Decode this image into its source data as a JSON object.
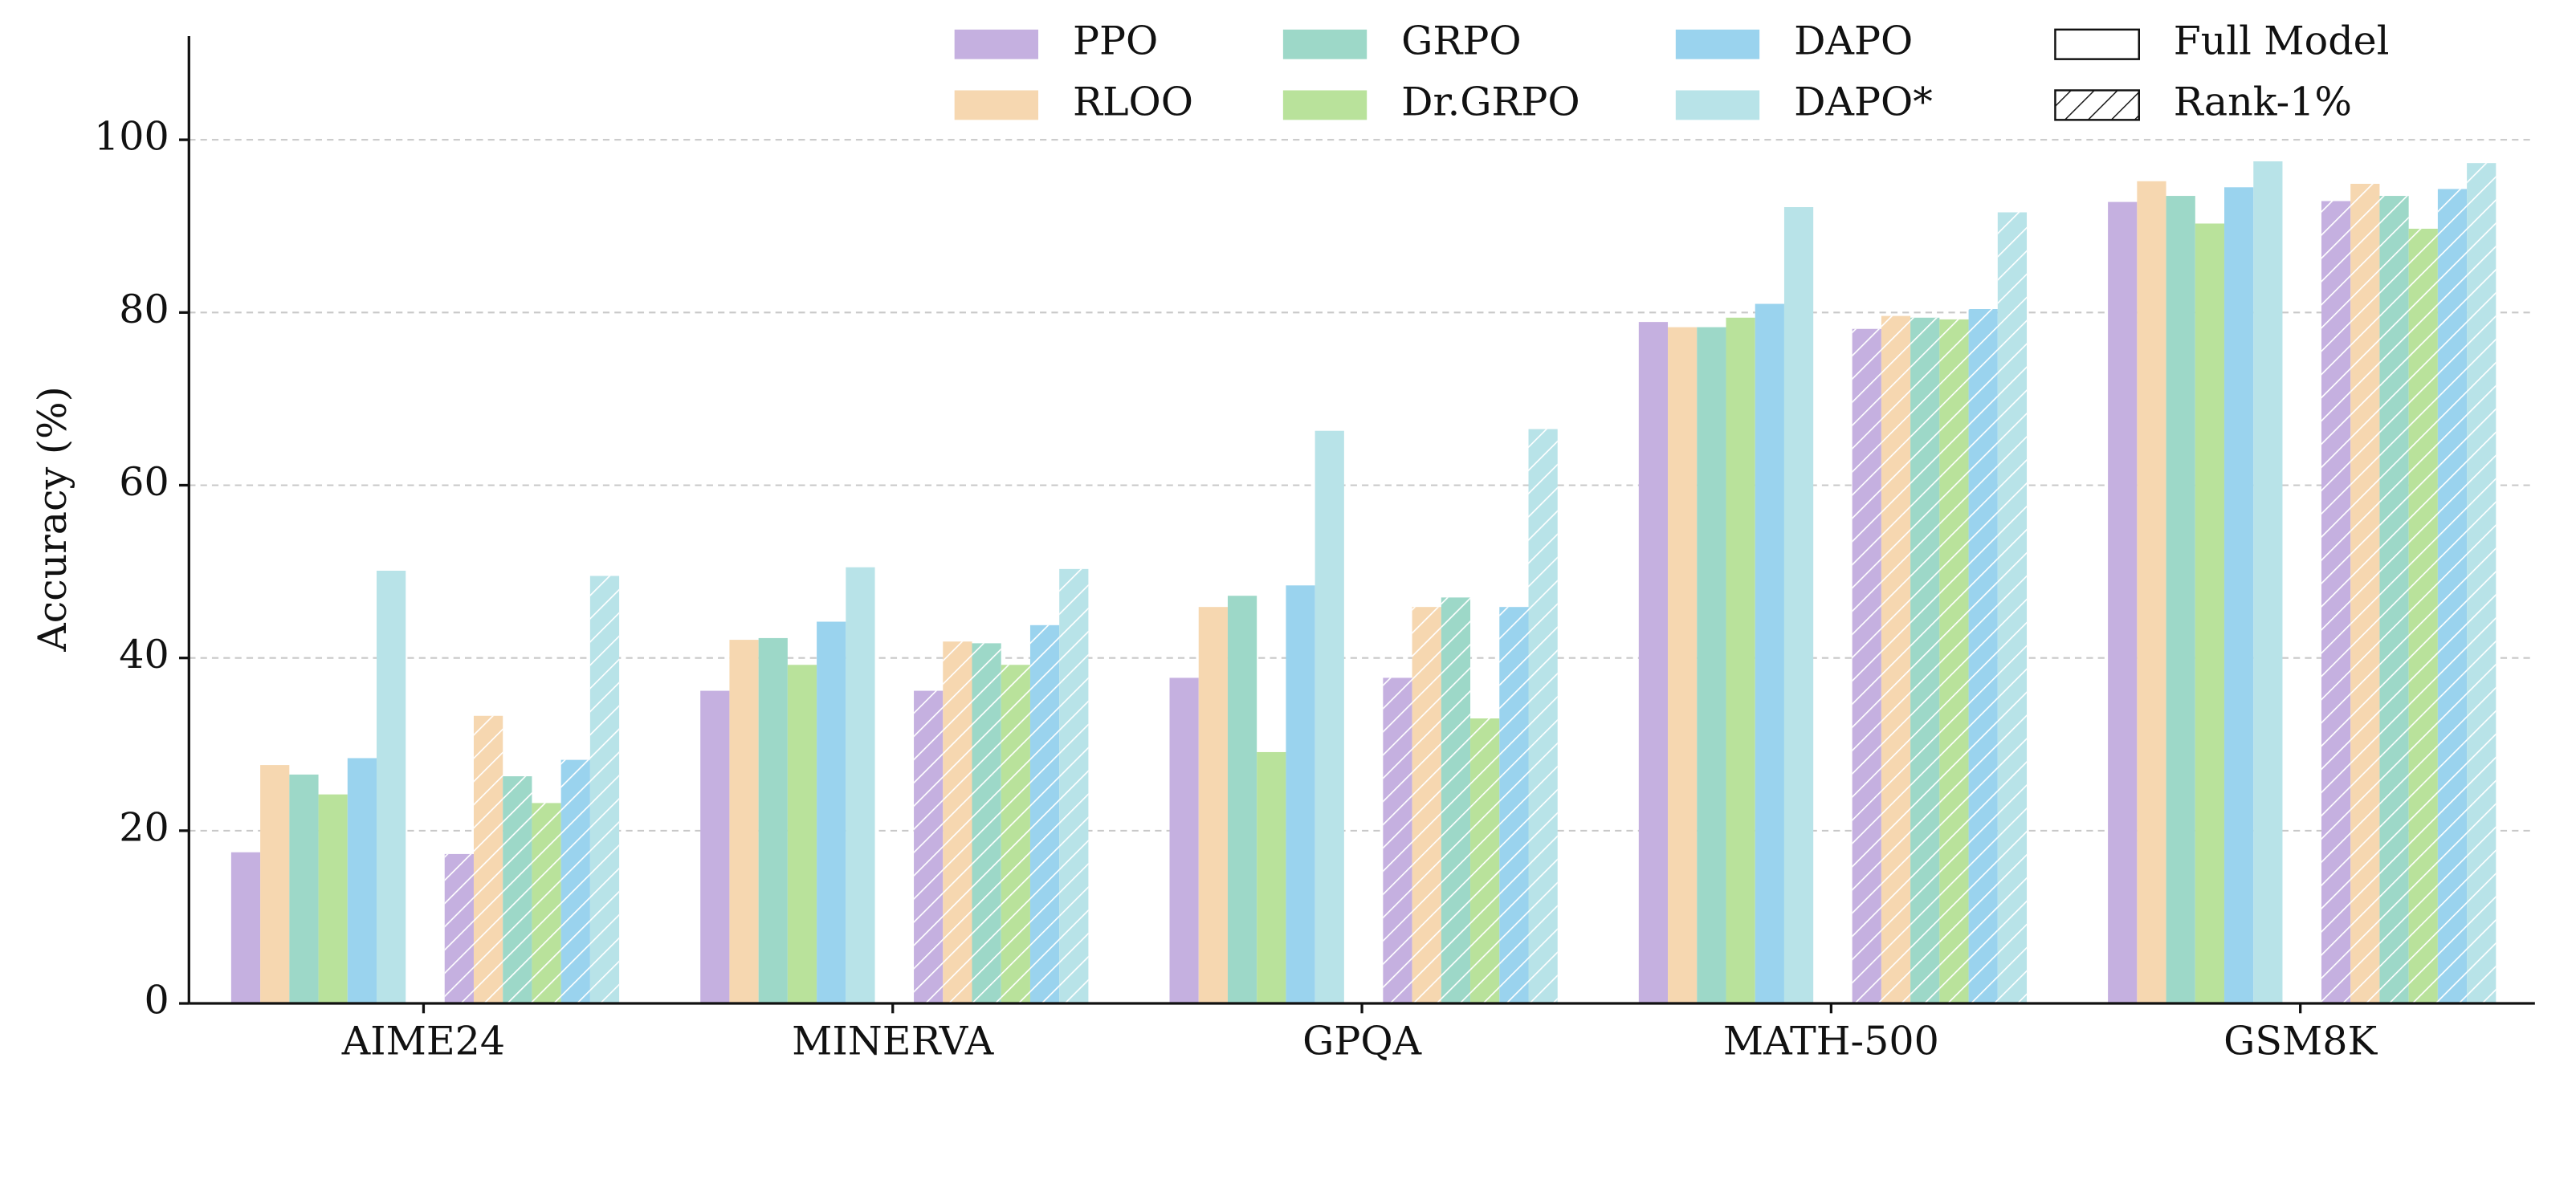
{
  "chart_data": {
    "type": "bar",
    "y_label": "Accuracy (%)",
    "categories": [
      "AIME24",
      "MINERVA",
      "GPQA",
      "MATH-500",
      "GSM8K"
    ],
    "variants": [
      {
        "name": "Full Model",
        "hatch": false
      },
      {
        "name": "Rank-1%",
        "hatch": true
      }
    ],
    "series": [
      {
        "name": "PPO",
        "color": "#c5b0e0",
        "values": [
          [
            17.5,
            36.2,
            37.7,
            78.9,
            92.8
          ],
          [
            17.3,
            36.2,
            37.7,
            78.1,
            92.9
          ]
        ]
      },
      {
        "name": "RLOO",
        "color": "#f6d7b0",
        "values": [
          [
            27.6,
            42.1,
            45.9,
            78.3,
            95.2
          ],
          [
            33.3,
            41.9,
            45.9,
            79.6,
            94.9
          ]
        ]
      },
      {
        "name": "GRPO",
        "color": "#9dd8c8",
        "values": [
          [
            26.5,
            42.3,
            47.2,
            78.3,
            93.5
          ],
          [
            26.3,
            41.7,
            47.0,
            79.4,
            93.5
          ]
        ]
      },
      {
        "name": "Dr.GRPO",
        "color": "#b9e29b",
        "values": [
          [
            24.2,
            39.2,
            29.1,
            79.4,
            90.3
          ],
          [
            23.2,
            39.2,
            33.0,
            79.2,
            89.7
          ]
        ]
      },
      {
        "name": "DAPO",
        "color": "#9ad3ee",
        "values": [
          [
            28.4,
            44.2,
            48.4,
            81.0,
            94.5
          ],
          [
            28.2,
            43.8,
            45.9,
            80.4,
            94.3
          ]
        ]
      },
      {
        "name": "DAPO*",
        "color": "#b8e3e8",
        "values": [
          [
            50.1,
            50.5,
            66.3,
            92.2,
            97.5
          ],
          [
            49.5,
            50.3,
            66.5,
            91.6,
            97.3
          ]
        ]
      }
    ],
    "ylim": [
      0,
      112
    ],
    "yticks": [
      0,
      20,
      40,
      60,
      80,
      100
    ],
    "grid": true
  }
}
